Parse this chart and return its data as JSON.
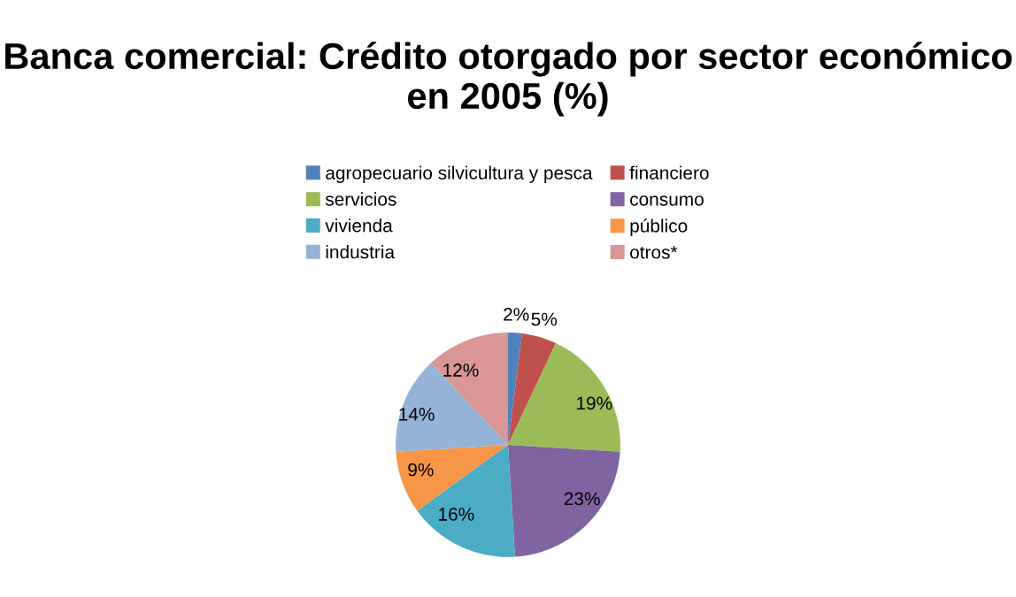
{
  "chart_data": {
    "type": "pie",
    "title": "Banca comercial: Crédito otorgado por sector económico en 2005 (%)",
    "categories": [
      "agropecuario silvicultura y pesca",
      "financiero",
      "servicios",
      "consumo",
      "vivienda",
      "público",
      "industria",
      "otros*"
    ],
    "values": [
      2,
      5,
      19,
      23,
      16,
      9,
      14,
      12
    ],
    "colors": [
      "#4f81bd",
      "#c0504d",
      "#9bbb59",
      "#8064a2",
      "#4bacc6",
      "#f79646",
      "#95b3d7",
      "#d99694"
    ],
    "value_labels": [
      "2%",
      "5%",
      "19%",
      "23%",
      "16%",
      "9%",
      "14%",
      "12%"
    ],
    "legend": "top"
  }
}
